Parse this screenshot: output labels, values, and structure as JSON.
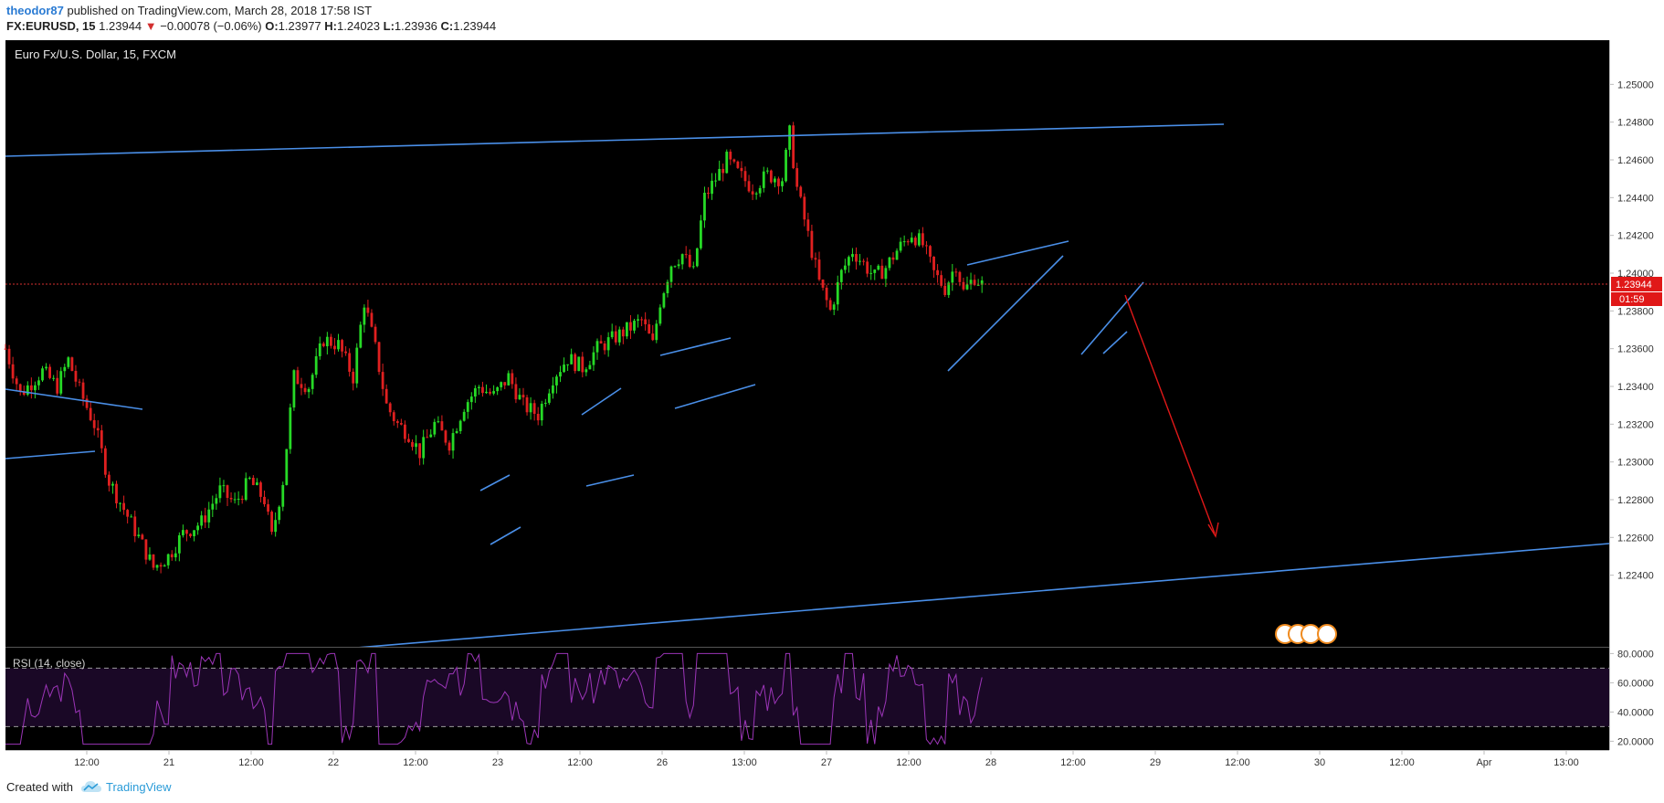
{
  "header": {
    "user": "theodor87",
    "published": "published on TradingView.com, March 28, 2018 17:58 IST",
    "symbol": "FX:EURUSD, 15",
    "last": "1.23944",
    "change": "−0.00078 (−0.06%)",
    "open_label": "O:",
    "open": "1.23977",
    "high_label": "H:",
    "high": "1.24023",
    "low_label": "L:",
    "low": "1.23936",
    "close_label": "C:",
    "close": "1.23944"
  },
  "footer": {
    "created": "Created with",
    "brand": "TradingView"
  },
  "colors": {
    "background": "#000000",
    "up": "#26d926",
    "down": "#e02020",
    "trend": "#4a8fe8",
    "rsi": "#9c35b8",
    "arrow": "#e01818",
    "price_line": "#d32f2f"
  },
  "chart_data": {
    "type": "candlestick",
    "title": "Euro Fx/U.S. Dollar, 15, FXCM",
    "y_ticks": [
      "1.25000",
      "1.24800",
      "1.24600",
      "1.24400",
      "1.24200",
      "1.24000",
      "1.23800",
      "1.23600",
      "1.23400",
      "1.23200",
      "1.23000",
      "1.22800",
      "1.22600",
      "1.22400"
    ],
    "ylim": [
      1.2227,
      1.2505
    ],
    "current_price": "1.23944",
    "countdown": "01:59",
    "x_ticks": [
      "12:00",
      "21",
      "12:00",
      "22",
      "12:00",
      "23",
      "12:00",
      "26",
      "13:00",
      "27",
      "12:00",
      "28",
      "12:00",
      "29",
      "12:00",
      "30",
      "12:00",
      "Apr",
      "13:00"
    ],
    "path": [
      [
        0,
        1.236
      ],
      [
        4,
        1.2336
      ],
      [
        10,
        1.2348
      ],
      [
        14,
        1.234
      ],
      [
        17,
        1.2354
      ],
      [
        20,
        1.2338
      ],
      [
        24,
        1.232
      ],
      [
        28,
        1.229
      ],
      [
        32,
        1.2275
      ],
      [
        36,
        1.226
      ],
      [
        40,
        1.2244
      ],
      [
        44,
        1.225
      ],
      [
        48,
        1.2262
      ],
      [
        53,
        1.2268
      ],
      [
        58,
        1.2285
      ],
      [
        62,
        1.2278
      ],
      [
        66,
        1.229
      ],
      [
        70,
        1.228
      ],
      [
        72,
        1.226
      ],
      [
        75,
        1.229
      ],
      [
        78,
        1.2345
      ],
      [
        82,
        1.234
      ],
      [
        86,
        1.2365
      ],
      [
        90,
        1.2362
      ],
      [
        94,
        1.2345
      ],
      [
        97,
        1.2385
      ],
      [
        100,
        1.236
      ],
      [
        103,
        1.233
      ],
      [
        106,
        1.232
      ],
      [
        109,
        1.2315
      ],
      [
        112,
        1.2305
      ],
      [
        116,
        1.232
      ],
      [
        120,
        1.231
      ],
      [
        124,
        1.233
      ],
      [
        128,
        1.234
      ],
      [
        132,
        1.2335
      ],
      [
        136,
        1.2345
      ],
      [
        140,
        1.233
      ],
      [
        144,
        1.2325
      ],
      [
        148,
        1.2345
      ],
      [
        152,
        1.2355
      ],
      [
        156,
        1.235
      ],
      [
        160,
        1.236
      ],
      [
        164,
        1.2365
      ],
      [
        168,
        1.237
      ],
      [
        172,
        1.2375
      ],
      [
        175,
        1.2362
      ],
      [
        177,
        1.2385
      ],
      [
        180,
        1.2405
      ],
      [
        183,
        1.241
      ],
      [
        186,
        1.24
      ],
      [
        189,
        1.244
      ],
      [
        192,
        1.245
      ],
      [
        195,
        1.246
      ],
      [
        198,
        1.2453
      ],
      [
        202,
        1.2445
      ],
      [
        206,
        1.2452
      ],
      [
        210,
        1.245
      ],
      [
        212,
        1.2474
      ],
      [
        214,
        1.2445
      ],
      [
        217,
        1.242
      ],
      [
        220,
        1.2395
      ],
      [
        223,
        1.238
      ],
      [
        226,
        1.24
      ],
      [
        229,
        1.2412
      ],
      [
        232,
        1.2405
      ],
      [
        235,
        1.2398
      ],
      [
        238,
        1.2403
      ],
      [
        241,
        1.2412
      ],
      [
        245,
        1.2421
      ],
      [
        248,
        1.2415
      ],
      [
        251,
        1.24
      ],
      [
        254,
        1.2392
      ],
      [
        257,
        1.2405
      ],
      [
        259,
        1.239
      ],
      [
        262,
        1.2398
      ],
      [
        264,
        1.2394
      ]
    ],
    "rsi": {
      "label": "RSI (14, close)",
      "ticks": [
        "80.0000",
        "60.0000",
        "40.0000",
        "20.0000"
      ],
      "ylim": [
        14,
        84
      ],
      "bands": [
        70,
        30
      ]
    }
  }
}
